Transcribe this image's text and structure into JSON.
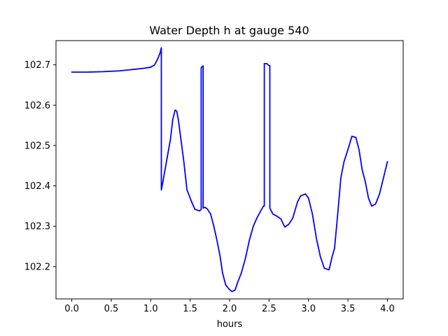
{
  "chart_data": {
    "type": "line",
    "title": "Water Depth h at gauge 540",
    "xlabel": "hours",
    "ylabel": "",
    "xlim": [
      -0.2,
      4.2
    ],
    "ylim": [
      102.12,
      102.76
    ],
    "xticks": [
      0.0,
      0.5,
      1.0,
      1.5,
      2.0,
      2.5,
      3.0,
      3.5,
      4.0
    ],
    "xtick_labels": [
      "0.0",
      "0.5",
      "1.0",
      "1.5",
      "2.0",
      "2.5",
      "3.0",
      "3.5",
      "4.0"
    ],
    "yticks": [
      102.2,
      102.3,
      102.4,
      102.5,
      102.6,
      102.7
    ],
    "ytick_labels": [
      "102.2",
      "102.3",
      "102.4",
      "102.5",
      "102.6",
      "102.7"
    ],
    "grid": false,
    "series": [
      {
        "color": "#0000ff",
        "points": [
          [
            0.0,
            102.682
          ],
          [
            0.2,
            102.682
          ],
          [
            0.4,
            102.683
          ],
          [
            0.6,
            102.685
          ],
          [
            0.7,
            102.687
          ],
          [
            0.8,
            102.689
          ],
          [
            0.9,
            102.691
          ],
          [
            1.0,
            102.694
          ],
          [
            1.05,
            102.7
          ],
          [
            1.09,
            102.715
          ],
          [
            1.12,
            102.73
          ],
          [
            1.135,
            102.742
          ],
          [
            1.135,
            102.39
          ],
          [
            1.15,
            102.405
          ],
          [
            1.2,
            102.46
          ],
          [
            1.25,
            102.515
          ],
          [
            1.28,
            102.565
          ],
          [
            1.31,
            102.588
          ],
          [
            1.33,
            102.585
          ],
          [
            1.35,
            102.565
          ],
          [
            1.38,
            102.52
          ],
          [
            1.42,
            102.46
          ],
          [
            1.46,
            102.39
          ],
          [
            1.52,
            102.36
          ],
          [
            1.56,
            102.342
          ],
          [
            1.62,
            102.338
          ],
          [
            1.64,
            102.342
          ],
          [
            1.64,
            102.693
          ],
          [
            1.66,
            102.697
          ],
          [
            1.665,
            102.697
          ],
          [
            1.665,
            102.345
          ],
          [
            1.69,
            102.347
          ],
          [
            1.72,
            102.342
          ],
          [
            1.76,
            102.33
          ],
          [
            1.8,
            102.3
          ],
          [
            1.84,
            102.265
          ],
          [
            1.88,
            102.225
          ],
          [
            1.91,
            102.185
          ],
          [
            1.95,
            102.155
          ],
          [
            1.99,
            102.145
          ],
          [
            2.03,
            102.138
          ],
          [
            2.07,
            102.142
          ],
          [
            2.1,
            102.16
          ],
          [
            2.15,
            102.185
          ],
          [
            2.2,
            102.22
          ],
          [
            2.25,
            102.265
          ],
          [
            2.3,
            102.3
          ],
          [
            2.35,
            102.322
          ],
          [
            2.4,
            102.34
          ],
          [
            2.43,
            102.35
          ],
          [
            2.44,
            102.35
          ],
          [
            2.44,
            102.703
          ],
          [
            2.47,
            102.703
          ],
          [
            2.5,
            102.698
          ],
          [
            2.51,
            102.698
          ],
          [
            2.51,
            102.345
          ],
          [
            2.55,
            102.33
          ],
          [
            2.6,
            102.325
          ],
          [
            2.65,
            102.318
          ],
          [
            2.7,
            102.298
          ],
          [
            2.75,
            102.305
          ],
          [
            2.8,
            102.32
          ],
          [
            2.86,
            102.36
          ],
          [
            2.9,
            102.375
          ],
          [
            2.96,
            102.38
          ],
          [
            3.0,
            102.37
          ],
          [
            3.05,
            102.33
          ],
          [
            3.1,
            102.27
          ],
          [
            3.15,
            102.225
          ],
          [
            3.2,
            102.196
          ],
          [
            3.26,
            102.192
          ],
          [
            3.3,
            102.225
          ],
          [
            3.33,
            102.245
          ],
          [
            3.37,
            102.33
          ],
          [
            3.41,
            102.42
          ],
          [
            3.45,
            102.46
          ],
          [
            3.5,
            102.49
          ],
          [
            3.55,
            102.523
          ],
          [
            3.6,
            102.52
          ],
          [
            3.64,
            102.49
          ],
          [
            3.68,
            102.44
          ],
          [
            3.72,
            102.41
          ],
          [
            3.76,
            102.37
          ],
          [
            3.8,
            102.35
          ],
          [
            3.85,
            102.355
          ],
          [
            3.9,
            102.38
          ],
          [
            3.95,
            102.42
          ],
          [
            4.0,
            102.46
          ]
        ]
      }
    ]
  }
}
